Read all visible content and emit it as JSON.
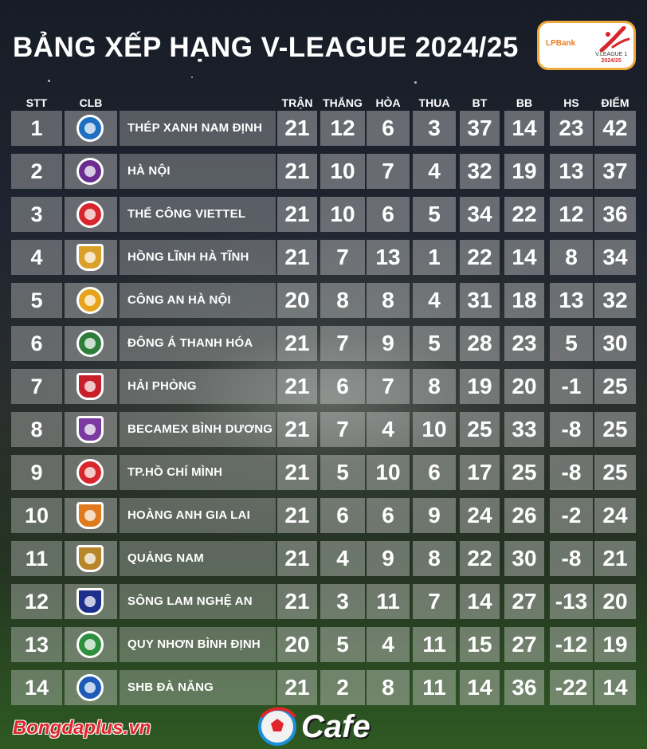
{
  "title": "BẢNG XẾP HẠNG V-LEAGUE 2024/25",
  "league_logo": {
    "sponsor": "LPBank",
    "name": "V.LEAGUE 1",
    "season": "2024/25"
  },
  "headers": {
    "stt": "STT",
    "clb": "CLB",
    "played": "TRẬN",
    "won": "THẮNG",
    "drawn": "HÒA",
    "lost": "THUA",
    "gf": "BT",
    "ga": "BB",
    "gd": "HS",
    "points": "ĐIỂM"
  },
  "rows": [
    {
      "rank": "1",
      "club": "THÉP XANH NAM ĐỊNH",
      "played": "21",
      "won": "12",
      "drawn": "6",
      "lost": "3",
      "gf": "37",
      "ga": "14",
      "gd": "23",
      "points": "42",
      "crest_color": "#1f6fc1",
      "crest_icon": "nam-dinh-crest-icon"
    },
    {
      "rank": "2",
      "club": "HÀ NỘI",
      "played": "21",
      "won": "10",
      "drawn": "7",
      "lost": "4",
      "gf": "32",
      "ga": "19",
      "gd": "13",
      "points": "37",
      "crest_color": "#6a2c8f",
      "crest_icon": "ha-noi-crest-icon"
    },
    {
      "rank": "3",
      "club": "THỂ CÔNG VIETTEL",
      "played": "21",
      "won": "10",
      "drawn": "6",
      "lost": "5",
      "gf": "34",
      "ga": "22",
      "gd": "12",
      "points": "36",
      "crest_color": "#d7262e",
      "crest_icon": "viettel-crest-icon"
    },
    {
      "rank": "4",
      "club": "HỒNG LĨNH HÀ TĨNH",
      "played": "21",
      "won": "7",
      "drawn": "13",
      "lost": "1",
      "gf": "22",
      "ga": "14",
      "gd": "8",
      "points": "34",
      "crest_color": "#d9a12a",
      "crest_icon": "ha-tinh-crest-icon"
    },
    {
      "rank": "5",
      "club": "CÔNG AN HÀ NỘI",
      "played": "20",
      "won": "8",
      "drawn": "8",
      "lost": "4",
      "gf": "31",
      "ga": "18",
      "gd": "13",
      "points": "32",
      "crest_color": "#e8a31c",
      "crest_icon": "cahn-crest-icon"
    },
    {
      "rank": "6",
      "club": "ĐÔNG Á THANH HÓA",
      "played": "21",
      "won": "7",
      "drawn": "9",
      "lost": "5",
      "gf": "28",
      "ga": "23",
      "gd": "5",
      "points": "30",
      "crest_color": "#2e7d3a",
      "crest_icon": "thanh-hoa-crest-icon"
    },
    {
      "rank": "7",
      "club": "HẢI PHÒNG",
      "played": "21",
      "won": "6",
      "drawn": "7",
      "lost": "8",
      "gf": "19",
      "ga": "20",
      "gd": "-1",
      "points": "25",
      "crest_color": "#c8202a",
      "crest_icon": "hai-phong-crest-icon"
    },
    {
      "rank": "8",
      "club": "BECAMEX BÌNH DƯƠNG",
      "played": "21",
      "won": "7",
      "drawn": "4",
      "lost": "10",
      "gf": "25",
      "ga": "33",
      "gd": "-8",
      "points": "25",
      "crest_color": "#7a3aa0",
      "crest_icon": "binh-duong-crest-icon"
    },
    {
      "rank": "9",
      "club": "TP.HỒ CHÍ MÌNH",
      "played": "21",
      "won": "5",
      "drawn": "10",
      "lost": "6",
      "gf": "17",
      "ga": "25",
      "gd": "-8",
      "points": "25",
      "crest_color": "#d8262d",
      "crest_icon": "hcmc-crest-icon"
    },
    {
      "rank": "10",
      "club": "HOÀNG ANH GIA LAI",
      "played": "21",
      "won": "6",
      "drawn": "6",
      "lost": "9",
      "gf": "24",
      "ga": "26",
      "gd": "-2",
      "points": "24",
      "crest_color": "#e07a1f",
      "crest_icon": "hagl-crest-icon"
    },
    {
      "rank": "11",
      "club": "QUẢNG NAM",
      "played": "21",
      "won": "4",
      "drawn": "9",
      "lost": "8",
      "gf": "22",
      "ga": "30",
      "gd": "-8",
      "points": "21",
      "crest_color": "#b8862a",
      "crest_icon": "quang-nam-crest-icon"
    },
    {
      "rank": "12",
      "club": "SÔNG LAM NGHỆ AN",
      "played": "21",
      "won": "3",
      "drawn": "11",
      "lost": "7",
      "gf": "14",
      "ga": "27",
      "gd": "-13",
      "points": "20",
      "crest_color": "#1c2f8a",
      "crest_icon": "slna-crest-icon"
    },
    {
      "rank": "13",
      "club": "QUY NHƠN BÌNH ĐỊNH",
      "played": "20",
      "won": "5",
      "drawn": "4",
      "lost": "11",
      "gf": "15",
      "ga": "27",
      "gd": "-12",
      "points": "19",
      "crest_color": "#2e8f3e",
      "crest_icon": "binh-dinh-crest-icon"
    },
    {
      "rank": "14",
      "club": "SHB ĐÀ NẴNG",
      "played": "21",
      "won": "2",
      "drawn": "8",
      "lost": "11",
      "gf": "14",
      "ga": "36",
      "gd": "-22",
      "points": "14",
      "crest_color": "#1e5bb8",
      "crest_icon": "da-nang-crest-icon"
    }
  ],
  "footer": {
    "left_brand": "Bongdaplus.vn",
    "right_brand": "Cafe"
  }
}
